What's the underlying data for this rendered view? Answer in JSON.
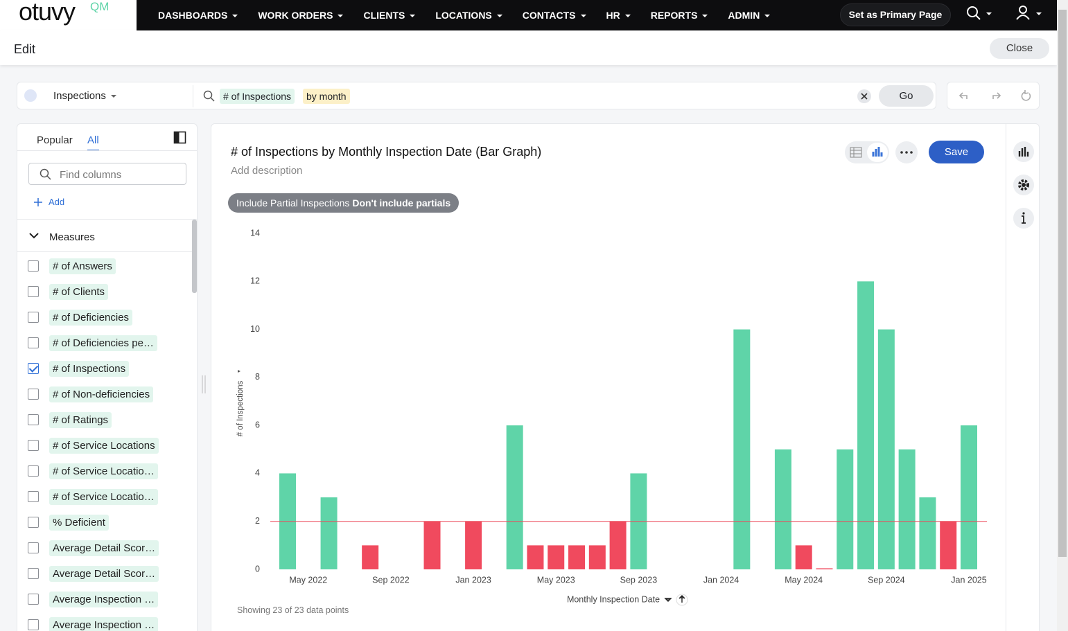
{
  "nav": {
    "logo": "otuvy",
    "logo_suffix": "QM",
    "items": [
      "DASHBOARDS",
      "WORK ORDERS",
      "CLIENTS",
      "LOCATIONS",
      "CONTACTS",
      "HR",
      "REPORTS",
      "ADMIN"
    ],
    "primary_button": "Set as Primary Page"
  },
  "header": {
    "title": "Edit",
    "close": "Close"
  },
  "search": {
    "source": "Inspections",
    "tokens": [
      "# of Inspections",
      "by month"
    ],
    "go": "Go"
  },
  "sidebar": {
    "tabs": [
      "Popular",
      "All"
    ],
    "search_placeholder": "Find columns",
    "add": "Add",
    "section": "Measures",
    "columns": [
      {
        "label": "# of Answers",
        "checked": false
      },
      {
        "label": "# of Clients",
        "checked": false
      },
      {
        "label": "# of Deficiencies",
        "checked": false
      },
      {
        "label": "# of Deficiencies pe…",
        "checked": false
      },
      {
        "label": "# of Inspections",
        "checked": true
      },
      {
        "label": "# of Non-deficiencies",
        "checked": false
      },
      {
        "label": "# of Ratings",
        "checked": false
      },
      {
        "label": "# of Service Locations",
        "checked": false
      },
      {
        "label": "# of Service Locatio…",
        "checked": false
      },
      {
        "label": "# of Service Locatio…",
        "checked": false
      },
      {
        "label": "% Deficient",
        "checked": false
      },
      {
        "label": "Average Detail Scor…",
        "checked": false
      },
      {
        "label": "Average Detail Scor…",
        "checked": false
      },
      {
        "label": "Average Inspection …",
        "checked": false
      },
      {
        "label": "Average Inspection …",
        "checked": false
      }
    ]
  },
  "panel": {
    "title": "# of Inspections by Monthly Inspection Date (Bar Graph)",
    "description": "Add description",
    "filter_label": "Include Partial Inspections",
    "filter_value": "Don't include partials",
    "save": "Save",
    "footer": "Showing 23 of 23 data points"
  },
  "chart_data": {
    "type": "bar",
    "x_label": "Monthly Inspection Date",
    "y_label": "# of Inspections",
    "x": [
      "2022-04",
      "2022-06",
      "2022-08",
      "2022-11",
      "2023-01",
      "2023-03",
      "2023-04",
      "2023-05",
      "2023-06",
      "2023-07",
      "2023-08",
      "2023-09",
      "2024-02",
      "2024-04",
      "2024-05",
      "2024-06",
      "2024-07",
      "2024-08",
      "2024-09",
      "2024-10",
      "2024-11",
      "2024-12",
      "2025-01"
    ],
    "values": [
      4,
      3,
      1,
      2,
      2,
      6,
      1,
      1,
      1,
      1,
      2,
      4,
      10,
      5,
      1,
      0,
      5,
      12,
      10,
      5,
      3,
      2,
      6
    ],
    "xlim": [
      "2022-04",
      "2025-01"
    ],
    "xticks": [
      {
        "value": "2022-05",
        "label": "May 2022"
      },
      {
        "value": "2022-09",
        "label": "Sep 2022"
      },
      {
        "value": "2023-01",
        "label": "Jan 2023"
      },
      {
        "value": "2023-05",
        "label": "May 2023"
      },
      {
        "value": "2023-09",
        "label": "Sep 2023"
      },
      {
        "value": "2024-01",
        "label": "Jan 2024"
      },
      {
        "value": "2024-05",
        "label": "May 2024"
      },
      {
        "value": "2024-09",
        "label": "Sep 2024"
      },
      {
        "value": "2025-01",
        "label": "Jan 2025"
      }
    ],
    "ylim": [
      0,
      14
    ],
    "yticks": [
      0,
      2,
      4,
      6,
      8,
      10,
      12,
      14
    ],
    "reference_line": {
      "value": 2,
      "color": "#ec4a5a"
    },
    "colors": {
      "above": "#5fd4a8",
      "at_or_below": "#f04a5e"
    },
    "grid": false
  }
}
